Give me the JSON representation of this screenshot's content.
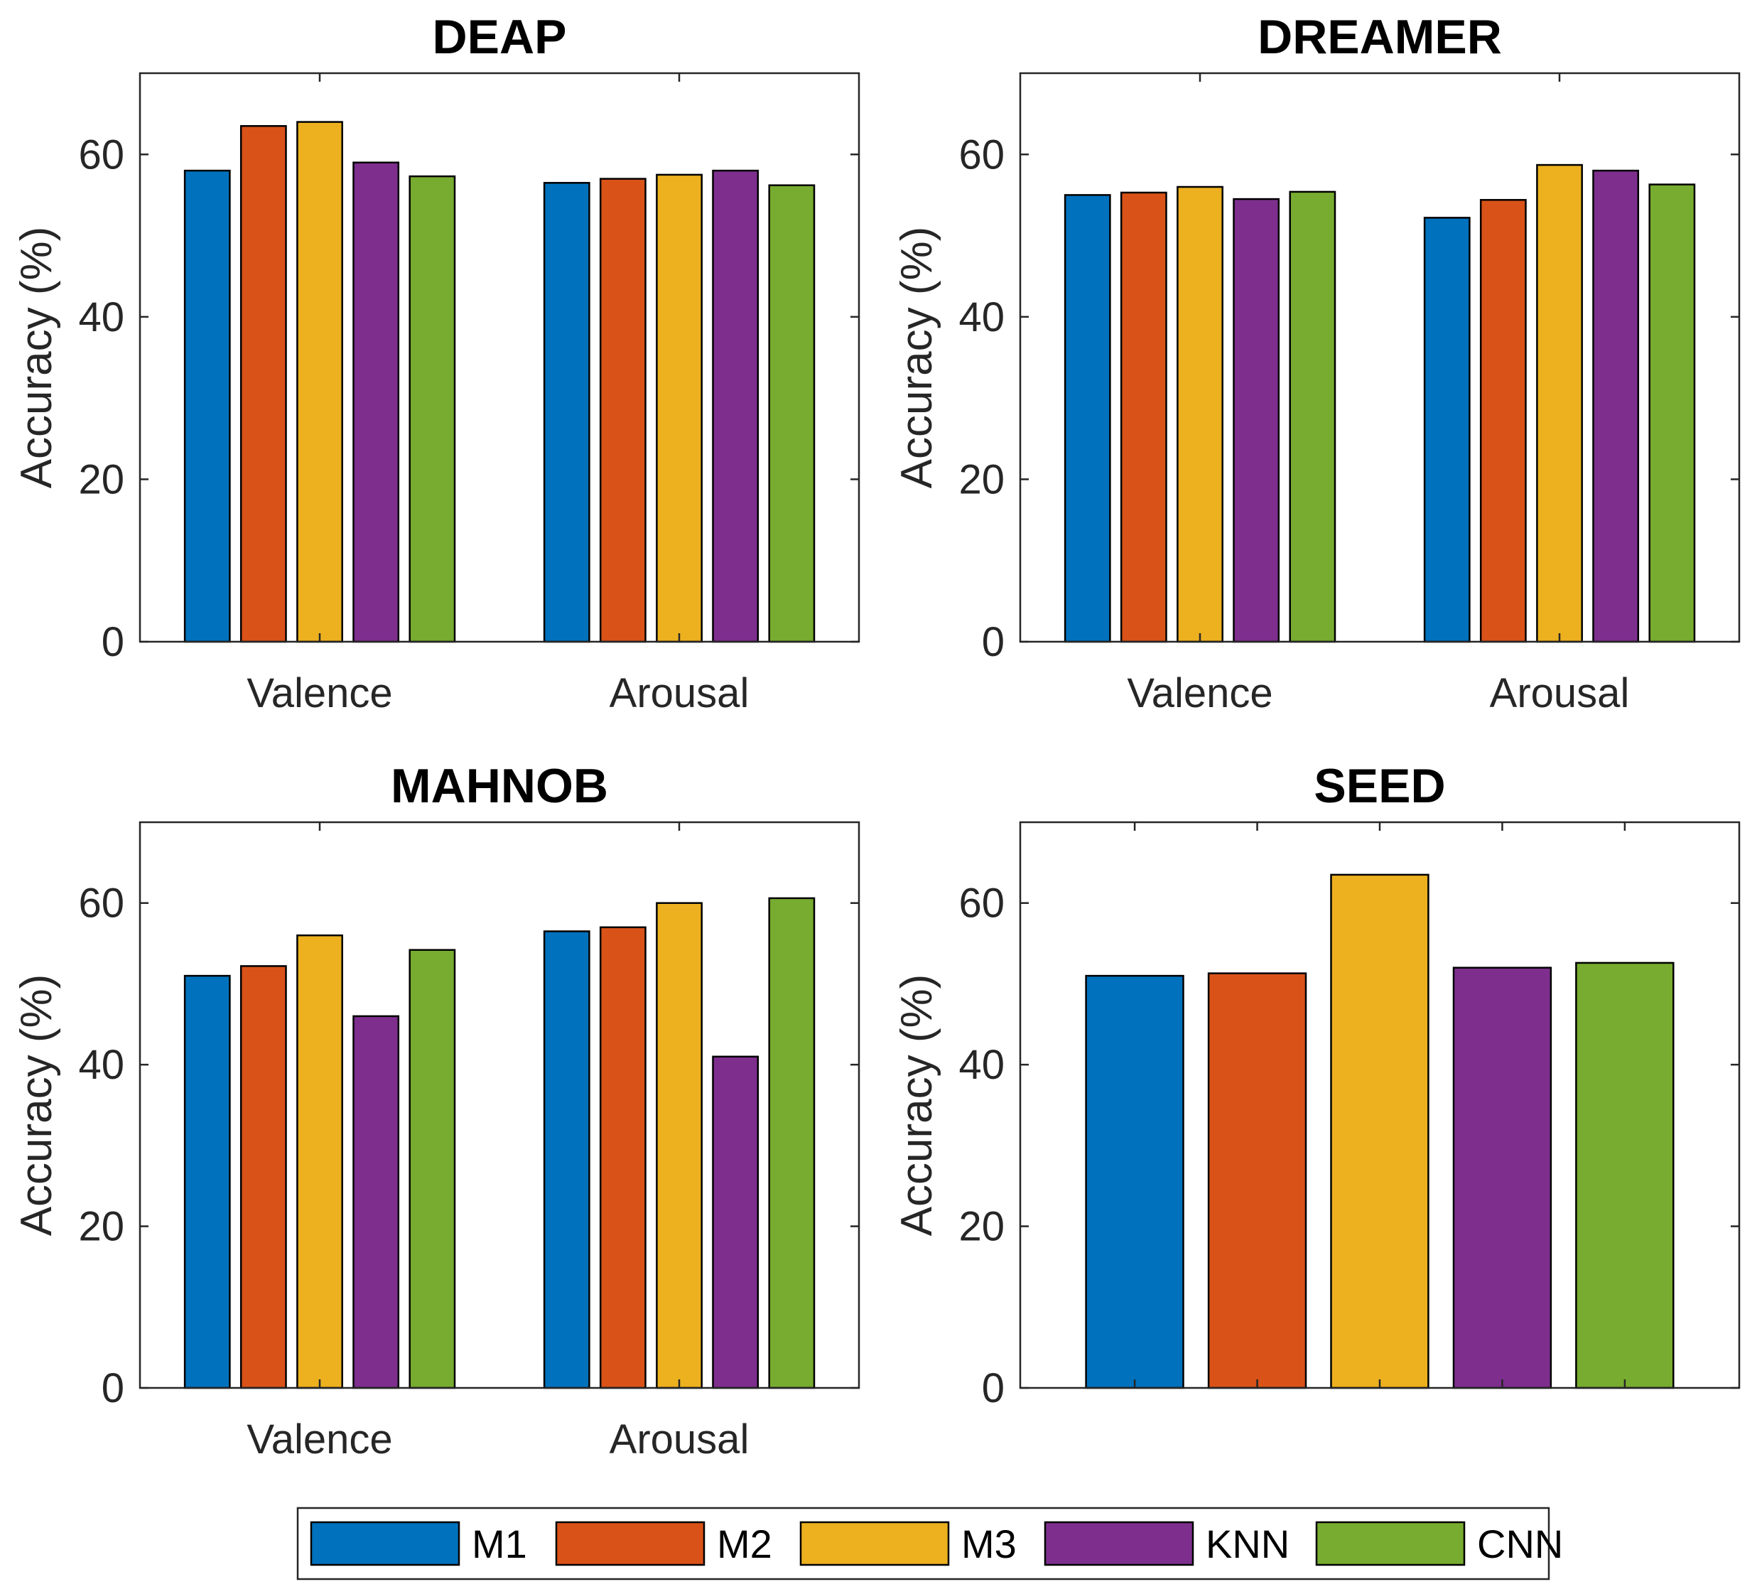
{
  "chart_data": [
    {
      "type": "bar",
      "title": "DEAP",
      "categories": [
        "Valence",
        "Arousal"
      ],
      "ylabel": "Accuracy (%)",
      "xlabel": "",
      "ylim": [
        0,
        70
      ],
      "yticks": [
        0,
        20,
        40,
        60
      ],
      "series": [
        {
          "name": "M1",
          "values": [
            58,
            56.5
          ]
        },
        {
          "name": "M2",
          "values": [
            63.5,
            57
          ]
        },
        {
          "name": "M3",
          "values": [
            64,
            57.5
          ]
        },
        {
          "name": "KNN",
          "values": [
            59,
            58
          ]
        },
        {
          "name": "CNN",
          "values": [
            57.3,
            56.2
          ]
        }
      ]
    },
    {
      "type": "bar",
      "title": "DREAMER",
      "categories": [
        "Valence",
        "Arousal"
      ],
      "ylabel": "Accuracy (%)",
      "xlabel": "",
      "ylim": [
        0,
        70
      ],
      "yticks": [
        0,
        20,
        40,
        60
      ],
      "series": [
        {
          "name": "M1",
          "values": [
            55,
            52.2
          ]
        },
        {
          "name": "M2",
          "values": [
            55.3,
            54.4
          ]
        },
        {
          "name": "M3",
          "values": [
            56,
            58.7
          ]
        },
        {
          "name": "KNN",
          "values": [
            54.5,
            58
          ]
        },
        {
          "name": "CNN",
          "values": [
            55.4,
            56.3
          ]
        }
      ]
    },
    {
      "type": "bar",
      "title": "MAHNOB",
      "categories": [
        "Valence",
        "Arousal"
      ],
      "ylabel": "Accuracy (%)",
      "xlabel": "",
      "ylim": [
        0,
        70
      ],
      "yticks": [
        0,
        20,
        40,
        60
      ],
      "series": [
        {
          "name": "M1",
          "values": [
            51,
            56.5
          ]
        },
        {
          "name": "M2",
          "values": [
            52.2,
            57
          ]
        },
        {
          "name": "M3",
          "values": [
            56,
            60
          ]
        },
        {
          "name": "KNN",
          "values": [
            46,
            41
          ]
        },
        {
          "name": "CNN",
          "values": [
            54.2,
            60.6
          ]
        }
      ]
    },
    {
      "type": "bar",
      "title": "SEED",
      "categories": [
        ""
      ],
      "ylabel": "Accuracy (%)",
      "xlabel": "",
      "ylim": [
        0,
        70
      ],
      "yticks": [
        0,
        20,
        40,
        60
      ],
      "series": [
        {
          "name": "M1",
          "values": [
            51
          ]
        },
        {
          "name": "M2",
          "values": [
            51.3
          ]
        },
        {
          "name": "M3",
          "values": [
            63.5
          ]
        },
        {
          "name": "KNN",
          "values": [
            52
          ]
        },
        {
          "name": "CNN",
          "values": [
            52.6
          ]
        }
      ]
    }
  ],
  "legend": {
    "position": "bottom-center",
    "items": [
      {
        "name": "M1",
        "color": "#0072BD"
      },
      {
        "name": "M2",
        "color": "#D95319"
      },
      {
        "name": "M3",
        "color": "#EDB120"
      },
      {
        "name": "KNN",
        "color": "#7E2F8E"
      },
      {
        "name": "CNN",
        "color": "#77AC30"
      }
    ]
  }
}
